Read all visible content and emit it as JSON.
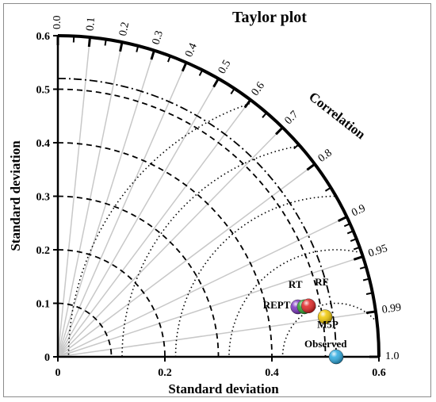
{
  "chart_data": {
    "type": "taylor",
    "title": "Taylor plot",
    "xlabel": "Standard deviation",
    "ylabel": "Standard deviation",
    "arc_label": "Correlation",
    "std_max": 0.6,
    "std_ticks": [
      "0",
      "0.1",
      "0.2",
      "0.3",
      "0.4",
      "0.5",
      "0.6"
    ],
    "x_ticks": [
      "0",
      "0.2",
      "0.4",
      "0.6"
    ],
    "correlation_ticks": [
      "0.0",
      "0.1",
      "0.2",
      "0.3",
      "0.4",
      "0.5",
      "0.6",
      "0.7",
      "0.8",
      "0.9",
      "0.95",
      "0.99",
      "1.0"
    ],
    "observed_std": 0.52,
    "std_contours": [
      0.1,
      0.2,
      0.3,
      0.4,
      0.5
    ],
    "reference_std_arc": 0.52,
    "rmsd_contours": [
      0.1,
      0.2,
      0.3,
      0.4,
      0.5
    ],
    "points": [
      {
        "name": "Observed",
        "std": 0.52,
        "corr": 1.0,
        "color": "#2aa9df"
      },
      {
        "name": "M5P",
        "std": 0.505,
        "corr": 0.989,
        "color": "#f0c800"
      },
      {
        "name": "RF",
        "std": 0.478,
        "corr": 0.98,
        "color": "#e02020"
      },
      {
        "name": "RT",
        "std": 0.47,
        "corr": 0.98,
        "color": "#28a028"
      },
      {
        "name": "REPT",
        "std": 0.458,
        "corr": 0.979,
        "color": "#7a2fc0"
      }
    ]
  }
}
